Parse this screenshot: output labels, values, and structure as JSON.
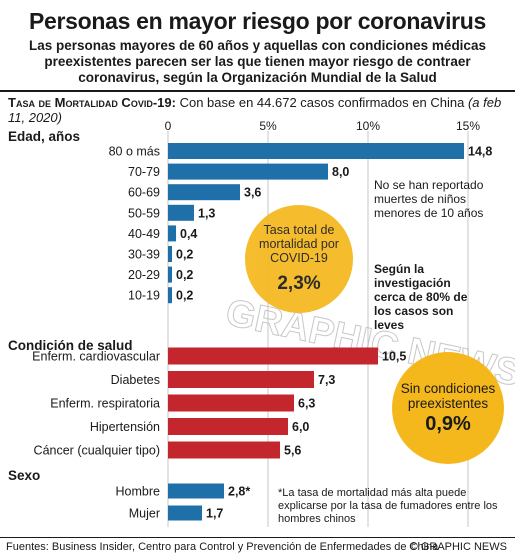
{
  "title": "Personas en mayor riesgo por coronavirus",
  "subtitle": "Las personas mayores de 60 años y aquellas con condiciones médicas preexistentes parecen ser las que tienen mayor riesgo de contraer coronavirus, según la Organización Mundial de la Salud",
  "caption": {
    "label": "Tasa de Mortalidad Covid-19:",
    "text": "Con base en 44.672 casos confirmados en China",
    "date": "(a feb 11, 2020)"
  },
  "notes": {
    "young": "No se han reportado muertes de niños menores de 10 años",
    "mild": "Según la investigación cerca de 80% de los casos son leves"
  },
  "circles": {
    "overall_label": "Tasa total de mortalidad por COVID-19",
    "overall_value": "2,3%",
    "no_conditions_label": "Sin condiciones preexistentes",
    "no_conditions_value": "0,9%"
  },
  "footnote": "*La tasa de mortalidad más alta puede explicarse por la tasa de fumadores entre los hombres chinos",
  "sources": "Fuentes: Business Insider, Centro para Control y Prevención de Enfermedades de China",
  "credit": "© GRAPHIC NEWS",
  "watermark": "GRAPHIC NEWS",
  "colors": {
    "age": "#1f6fa8",
    "condition": "#c4262e",
    "sex": "#1f6fa8",
    "circle": "#f5b81c"
  },
  "chart_data": {
    "type": "bar",
    "orientation": "horizontal",
    "x_unit": "%",
    "xlim": [
      0,
      15
    ],
    "xticks": [
      0,
      5,
      10,
      15
    ],
    "xtick_labels": [
      "0",
      "5%",
      "10%",
      "15%"
    ],
    "grid": "vertical",
    "groups": [
      {
        "name": "Edad, años",
        "color_key": "age",
        "categories": [
          "80 o más",
          "70-79",
          "60-69",
          "50-59",
          "40-49",
          "30-39",
          "20-29",
          "10-19"
        ],
        "values": [
          14.8,
          8.0,
          3.6,
          1.3,
          0.4,
          0.2,
          0.2,
          0.2
        ],
        "labels": [
          "14,8",
          "8,0",
          "3,6",
          "1,3",
          "0,4",
          "0,2",
          "0,2",
          "0,2"
        ]
      },
      {
        "name": "Condición de salud",
        "color_key": "condition",
        "categories": [
          "Enferm. cardiovascular",
          "Diabetes",
          "Enferm. respiratoria",
          "Hipertensión",
          "Cáncer (cualquier tipo)"
        ],
        "values": [
          10.5,
          7.3,
          6.3,
          6.0,
          5.6
        ],
        "labels": [
          "10,5",
          "7,3",
          "6,3",
          "6,0",
          "5,6"
        ]
      },
      {
        "name": "Sexo",
        "color_key": "sex",
        "categories": [
          "Hombre",
          "Mujer"
        ],
        "values": [
          2.8,
          1.7
        ],
        "labels": [
          "2,8*",
          "1,7"
        ]
      }
    ]
  }
}
